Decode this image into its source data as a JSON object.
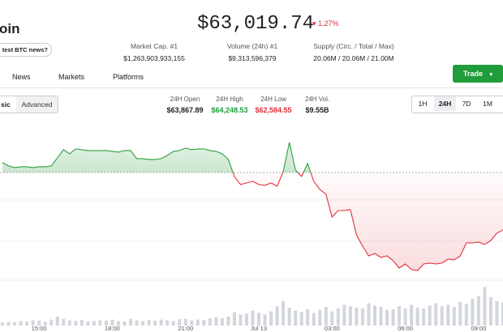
{
  "header": {
    "name": "oin",
    "news_prompt": "test BTC news?",
    "price": "$63,019.74",
    "change": "1.27%",
    "stats": [
      {
        "label": "Market Cap. #1",
        "value": "$1,263,903,933,155"
      },
      {
        "label": "Volume (24h) #1",
        "value": "$9,313,596,379"
      },
      {
        "label": "Supply (Circ. / Total / Max)",
        "value": "20.06M / 20.06M / 21.00M"
      }
    ]
  },
  "tabs": [
    "News",
    "Markets",
    "Platforms"
  ],
  "trade_button": "Trade",
  "chart_modes": [
    "sic",
    "Advanced"
  ],
  "summary": [
    {
      "label": "24H Open",
      "value": "$63,867.89"
    },
    {
      "label": "24H High",
      "value": "$64,248.53"
    },
    {
      "label": "24H Low",
      "value": "$62,584.55"
    },
    {
      "label": "24H Vol.",
      "value": "$9.55B"
    }
  ],
  "timeframes": [
    "1H",
    "24H",
    "7D",
    "1M"
  ],
  "chart_data": {
    "type": "line",
    "baseline": 63867.89,
    "up_color": "#2e9e3e",
    "down_color": "#e0303a",
    "volume_color": "#d3d6dc",
    "xlim": [
      13.4,
      34.0
    ],
    "ylim": [
      62513,
      64515
    ],
    "vlim": [
      0,
      600
    ],
    "xticks": [
      {
        "value": 15,
        "label": "15:00"
      },
      {
        "value": 18,
        "label": "18:00"
      },
      {
        "value": 21,
        "label": "21:00"
      },
      {
        "value": 24,
        "label": "Jul 13"
      },
      {
        "value": 27,
        "label": "03:00"
      },
      {
        "value": 30,
        "label": "06:00"
      },
      {
        "value": 33,
        "label": "09:00"
      }
    ],
    "x": [
      13.5,
      13.75,
      14,
      14.25,
      14.5,
      14.75,
      15,
      15.25,
      15.5,
      15.75,
      16,
      16.25,
      16.5,
      16.75,
      17,
      17.25,
      17.5,
      17.75,
      18,
      18.25,
      18.5,
      18.75,
      19,
      19.25,
      19.5,
      19.75,
      20,
      20.25,
      20.5,
      20.75,
      21,
      21.25,
      21.5,
      21.75,
      22,
      22.25,
      22.5,
      22.75,
      23,
      23.25,
      23.5,
      23.75,
      24,
      24.25,
      24.5,
      24.75,
      25,
      25.25,
      25.5,
      25.75,
      26,
      26.25,
      26.5,
      26.75,
      27,
      27.25,
      27.5,
      27.75,
      28,
      28.25,
      28.5,
      28.75,
      29,
      29.25,
      29.5,
      29.75,
      30,
      30.25,
      30.5,
      30.75,
      31,
      31.25,
      31.5,
      31.75,
      32,
      32.25,
      32.5,
      32.75,
      33,
      33.25,
      33.5,
      33.75,
      34
    ],
    "values": [
      63992,
      63951,
      63931,
      63941,
      63941,
      63931,
      63941,
      63941,
      63951,
      64054,
      64157,
      64105,
      64167,
      64157,
      64146,
      64146,
      64146,
      64146,
      64136,
      64126,
      64146,
      64146,
      64044,
      64044,
      64033,
      64033,
      64044,
      64085,
      64136,
      64146,
      64177,
      64157,
      64167,
      64167,
      64146,
      64136,
      64105,
      64033,
      63818,
      63715,
      63736,
      63756,
      63715,
      63705,
      63736,
      63694,
      63879,
      64249,
      63900,
      63818,
      63982,
      63756,
      63653,
      63592,
      63304,
      63386,
      63386,
      63397,
      63078,
      62934,
      62811,
      62842,
      62791,
      62811,
      62750,
      62657,
      62708,
      62637,
      62626,
      62708,
      62719,
      62708,
      62719,
      62770,
      62760,
      62811,
      62975,
      62975,
      62986,
      62955,
      63006,
      63099,
      63140
    ],
    "volume": [
      40,
      50,
      45,
      60,
      55,
      70,
      65,
      50,
      80,
      120,
      90,
      70,
      60,
      75,
      55,
      60,
      70,
      65,
      80,
      60,
      55,
      90,
      70,
      60,
      75,
      65,
      80,
      70,
      60,
      85,
      90,
      70,
      80,
      75,
      95,
      110,
      100,
      120,
      180,
      150,
      160,
      200,
      170,
      150,
      190,
      260,
      330,
      240,
      200,
      180,
      220,
      170,
      210,
      250,
      190,
      230,
      280,
      260,
      240,
      230,
      300,
      270,
      250,
      210,
      220,
      260,
      230,
      280,
      240,
      230,
      270,
      300,
      260,
      280,
      250,
      320,
      290,
      360,
      400,
      520,
      380,
      330,
      310
    ]
  }
}
